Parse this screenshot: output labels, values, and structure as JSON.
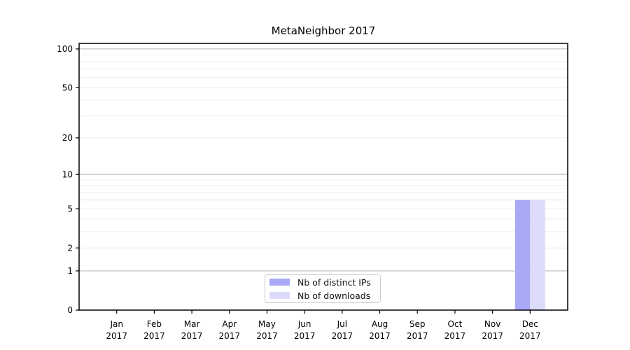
{
  "chart_data": {
    "type": "bar",
    "title": "MetaNeighbor 2017",
    "xlabel": "",
    "ylabel": "",
    "year_label": "2017",
    "categories": [
      "Jan",
      "Feb",
      "Mar",
      "Apr",
      "May",
      "Jun",
      "Jul",
      "Aug",
      "Sep",
      "Oct",
      "Nov",
      "Dec"
    ],
    "series": [
      {
        "name": "Nb of distinct IPs",
        "color": "#a9a9f7",
        "values": [
          0,
          0,
          0,
          0,
          0,
          0,
          0,
          0,
          0,
          0,
          0,
          6
        ]
      },
      {
        "name": "Nb of downloads",
        "color": "#dcdcfa",
        "values": [
          0,
          0,
          0,
          0,
          0,
          0,
          0,
          0,
          0,
          0,
          0,
          6
        ]
      }
    ],
    "yscale": "log1p",
    "ylim": [
      0,
      110.4
    ],
    "yticks": [
      0,
      1,
      2,
      5,
      10,
      20,
      50,
      100
    ],
    "grid": {
      "major": [
        1,
        10,
        100
      ],
      "minor": [
        2,
        3,
        4,
        5,
        6,
        7,
        8,
        9,
        20,
        30,
        40,
        50,
        60,
        70,
        80,
        90,
        110
      ],
      "major_color": "#b0b0b0",
      "minor_color": "#ececec"
    },
    "legend_position": "lower center",
    "axis_color": "#000000",
    "background": "#ffffff"
  }
}
